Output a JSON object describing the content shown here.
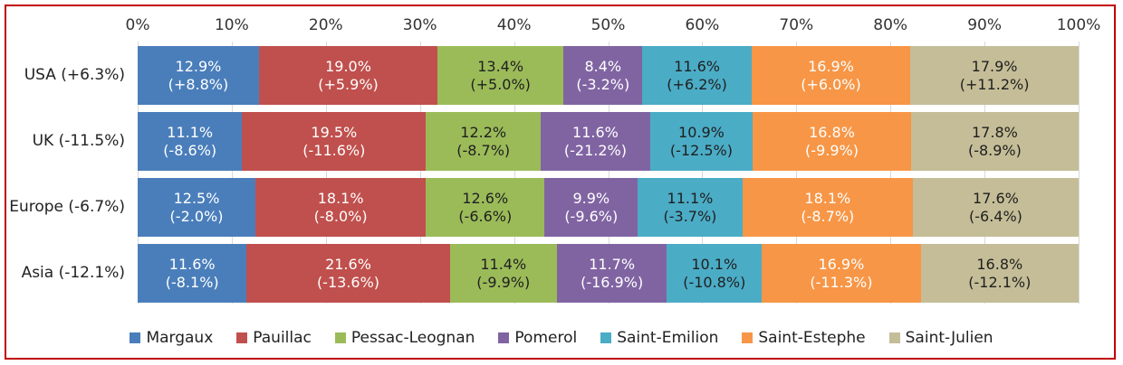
{
  "chart_data": {
    "type": "bar",
    "orientation": "horizontal",
    "stacked": true,
    "percent": true,
    "categories": [
      "USA (+6.3%)",
      "UK (-11.5%)",
      "Europe (-6.7%)",
      "Asia (-12.1%)"
    ],
    "x_ticks": [
      "0%",
      "10%",
      "20%",
      "30%",
      "40%",
      "50%",
      "60%",
      "70%",
      "80%",
      "90%",
      "100%"
    ],
    "xlim": [
      0,
      100
    ],
    "grid": true,
    "legend_position": "bottom",
    "series": [
      {
        "name": "Margaux",
        "color": "#4a7ebb",
        "text_color": "#ffffff",
        "values": [
          12.9,
          11.1,
          12.5,
          11.6
        ],
        "labels": [
          [
            "12.9%",
            "(+8.8%)"
          ],
          [
            "11.1%",
            "(-8.6%)"
          ],
          [
            "12.5%",
            "(-2.0%)"
          ],
          [
            "11.6%",
            "(-8.1%)"
          ]
        ]
      },
      {
        "name": "Pauillac",
        "color": "#c0504d",
        "text_color": "#ffffff",
        "values": [
          19.0,
          19.5,
          18.1,
          21.6
        ],
        "labels": [
          [
            "19.0%",
            "(+5.9%)"
          ],
          [
            "19.5%",
            "(-11.6%)"
          ],
          [
            "18.1%",
            "(-8.0%)"
          ],
          [
            "21.6%",
            "(-13.6%)"
          ]
        ]
      },
      {
        "name": "Pessac-Leognan",
        "color": "#9bbb59",
        "text_color": "#1f1f1f",
        "values": [
          13.4,
          12.2,
          12.6,
          11.4
        ],
        "labels": [
          [
            "13.4%",
            "(+5.0%)"
          ],
          [
            "12.2%",
            "(-8.7%)"
          ],
          [
            "12.6%",
            "(-6.6%)"
          ],
          [
            "11.4%",
            "(-9.9%)"
          ]
        ]
      },
      {
        "name": "Pomerol",
        "color": "#8064a2",
        "text_color": "#ffffff",
        "values": [
          8.4,
          11.6,
          9.9,
          11.7
        ],
        "labels": [
          [
            "8.4%",
            "(-3.2%)"
          ],
          [
            "11.6%",
            "(-21.2%)"
          ],
          [
            "9.9%",
            "(-9.6%)"
          ],
          [
            "11.7%",
            "(-16.9%)"
          ]
        ]
      },
      {
        "name": "Saint-Emilion",
        "color": "#4bacc6",
        "text_color": "#1f1f1f",
        "values": [
          11.6,
          10.9,
          11.1,
          10.1
        ],
        "labels": [
          [
            "11.6%",
            "(+6.2%)"
          ],
          [
            "10.9%",
            "(-12.5%)"
          ],
          [
            "11.1%",
            "(-3.7%)"
          ],
          [
            "10.1%",
            "(-10.8%)"
          ]
        ]
      },
      {
        "name": "Saint-Estephe",
        "color": "#f79646",
        "text_color": "#ffffff",
        "values": [
          16.9,
          16.8,
          18.1,
          16.9
        ],
        "labels": [
          [
            "16.9%",
            "(+6.0%)"
          ],
          [
            "16.8%",
            "(-9.9%)"
          ],
          [
            "18.1%",
            "(-8.7%)"
          ],
          [
            "16.9%",
            "(-11.3%)"
          ]
        ]
      },
      {
        "name": "Saint-Julien",
        "color": "#c4bd97",
        "text_color": "#1f1f1f",
        "values": [
          17.9,
          17.8,
          17.6,
          16.8
        ],
        "labels": [
          [
            "17.9%",
            "(+11.2%)"
          ],
          [
            "17.8%",
            "(-8.9%)"
          ],
          [
            "17.6%",
            "(-6.4%)"
          ],
          [
            "16.8%",
            "(-12.1%)"
          ]
        ]
      }
    ]
  }
}
